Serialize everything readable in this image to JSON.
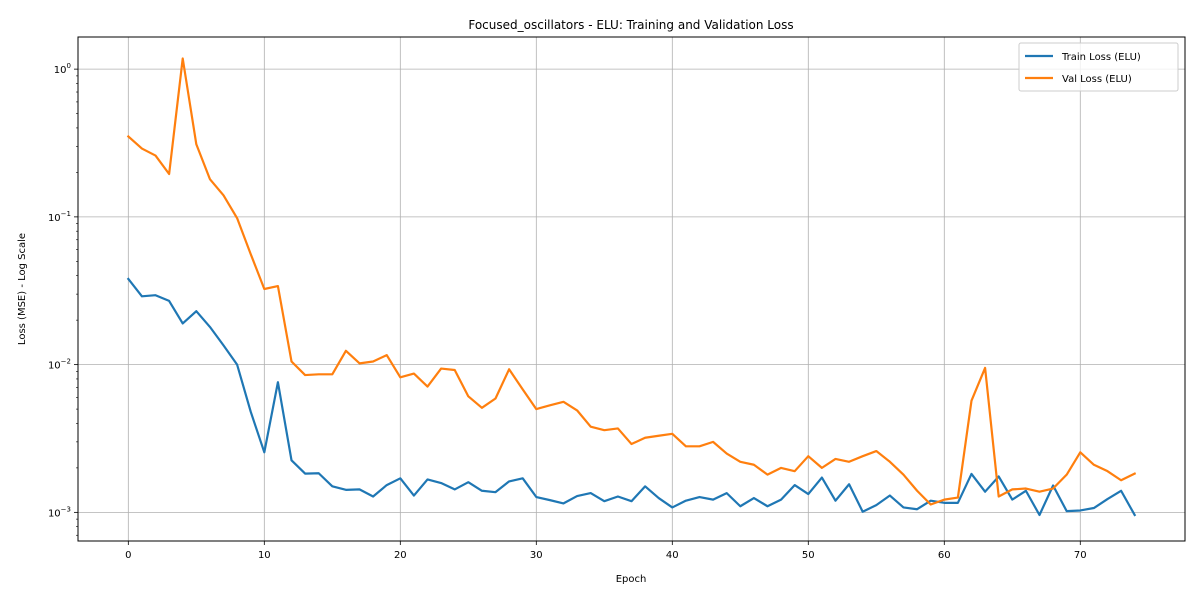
{
  "chart_data": {
    "type": "line",
    "title": "Focused_oscillators - ELU: Training and Validation Loss",
    "xlabel": "Epoch",
    "ylabel": "Loss (MSE) - Log Scale",
    "yscale": "log",
    "xlim": [
      -3.7,
      77.7
    ],
    "ylim": [
      0.00064,
      1.65
    ],
    "grid": true,
    "legend_position": "top-right",
    "x_ticks": [
      {
        "value": 0,
        "label": "0"
      },
      {
        "value": 10,
        "label": "10"
      },
      {
        "value": 20,
        "label": "20"
      },
      {
        "value": 30,
        "label": "30"
      },
      {
        "value": 40,
        "label": "40"
      },
      {
        "value": 50,
        "label": "50"
      },
      {
        "value": 60,
        "label": "60"
      },
      {
        "value": 70,
        "label": "70"
      }
    ],
    "y_ticks": [
      {
        "value": 0.001,
        "base": "10",
        "exp": "−3"
      },
      {
        "value": 0.01,
        "base": "10",
        "exp": "−2"
      },
      {
        "value": 0.1,
        "base": "10",
        "exp": "−1"
      },
      {
        "value": 1,
        "base": "10",
        "exp": "0"
      }
    ],
    "series": [
      {
        "name": "Train Loss (ELU)",
        "color": "#1f77b4",
        "values": [
          0.038,
          0.029,
          0.0295,
          0.027,
          0.019,
          0.023,
          0.018,
          0.0135,
          0.01,
          0.0048,
          0.00255,
          0.0076,
          0.00225,
          0.00183,
          0.00184,
          0.0015,
          0.00142,
          0.00143,
          0.00128,
          0.00153,
          0.0017,
          0.0013,
          0.00167,
          0.00158,
          0.00143,
          0.0016,
          0.0014,
          0.00137,
          0.00162,
          0.0017,
          0.00127,
          0.00121,
          0.00115,
          0.00129,
          0.00135,
          0.00119,
          0.00128,
          0.00119,
          0.0015,
          0.00125,
          0.00108,
          0.0012,
          0.00127,
          0.00122,
          0.00135,
          0.0011,
          0.00125,
          0.0011,
          0.00122,
          0.00153,
          0.00133,
          0.00172,
          0.0012,
          0.00155,
          0.00101,
          0.00112,
          0.0013,
          0.00108,
          0.00105,
          0.0012,
          0.00116,
          0.00116,
          0.00182,
          0.00138,
          0.00175,
          0.00122,
          0.0014,
          0.00096,
          0.00152,
          0.00102,
          0.00103,
          0.00107,
          0.00123,
          0.0014,
          0.00096
        ]
      },
      {
        "name": "Val Loss (ELU)",
        "color": "#ff7f0e",
        "values": [
          0.35,
          0.29,
          0.26,
          0.195,
          1.18,
          0.31,
          0.18,
          0.14,
          0.098,
          0.056,
          0.0325,
          0.034,
          0.0105,
          0.0085,
          0.0086,
          0.0086,
          0.0124,
          0.0102,
          0.0105,
          0.0116,
          0.0082,
          0.0087,
          0.0071,
          0.0094,
          0.0092,
          0.0061,
          0.0051,
          0.0059,
          0.0093,
          0.0068,
          0.005,
          0.0053,
          0.0056,
          0.0049,
          0.0038,
          0.0036,
          0.0037,
          0.0029,
          0.0032,
          0.0033,
          0.0034,
          0.0028,
          0.0028,
          0.003,
          0.0025,
          0.0022,
          0.0021,
          0.0018,
          0.002,
          0.0019,
          0.0024,
          0.002,
          0.0023,
          0.0022,
          0.0024,
          0.0026,
          0.0022,
          0.0018,
          0.0014,
          0.00113,
          0.00122,
          0.00126,
          0.0057,
          0.0095,
          0.00128,
          0.00143,
          0.00145,
          0.00138,
          0.00145,
          0.0018,
          0.00255,
          0.0021,
          0.0019,
          0.00165,
          0.00183
        ]
      }
    ]
  }
}
